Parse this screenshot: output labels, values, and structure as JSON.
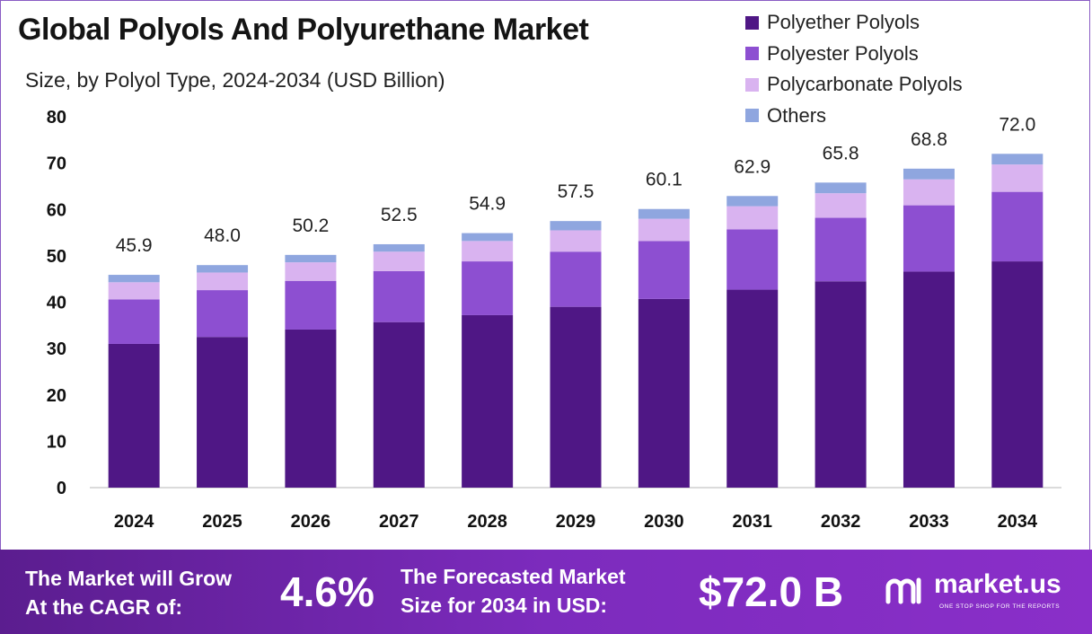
{
  "title": "Global Polyols And Polyurethane Market",
  "subtitle": "Size, by Polyol Type, 2024-2034 (USD Billion)",
  "chart_data": {
    "type": "bar",
    "stacked": true,
    "title": "Global Polyols And Polyurethane Market",
    "subtitle": "Size, by Polyol Type, 2024-2034 (USD Billion)",
    "xlabel": "",
    "ylabel": "",
    "ylim": [
      0,
      80
    ],
    "yticks": [
      0,
      10,
      20,
      30,
      40,
      50,
      60,
      70,
      80
    ],
    "categories": [
      "2024",
      "2025",
      "2026",
      "2027",
      "2028",
      "2029",
      "2030",
      "2031",
      "2032",
      "2033",
      "2034"
    ],
    "series": [
      {
        "name": "Polyether Polyols",
        "color": "#4f1785",
        "values": [
          31.0,
          32.5,
          34.1,
          35.7,
          37.2,
          39.0,
          40.7,
          42.7,
          44.5,
          46.6,
          48.8
        ]
      },
      {
        "name": "Polyester Polyols",
        "color": "#8d4fd1",
        "values": [
          9.6,
          10.1,
          10.5,
          11.0,
          11.6,
          11.9,
          12.5,
          13.0,
          13.7,
          14.3,
          15.0
        ]
      },
      {
        "name": "Polycarbonate Polyols",
        "color": "#d9b3f0",
        "values": [
          3.7,
          3.8,
          4.0,
          4.2,
          4.4,
          4.6,
          4.8,
          5.0,
          5.3,
          5.6,
          5.9
        ]
      },
      {
        "name": "Others",
        "color": "#8fa6df",
        "values": [
          1.6,
          1.6,
          1.6,
          1.6,
          1.7,
          2.0,
          2.1,
          2.2,
          2.3,
          2.3,
          2.3
        ]
      }
    ],
    "totals": [
      "45.9",
      "48.0",
      "50.2",
      "52.5",
      "54.9",
      "57.5",
      "60.1",
      "62.9",
      "65.8",
      "68.8",
      "72.0"
    ],
    "legend_position": "top-right",
    "grid": false
  },
  "footer": {
    "cagr_label_line1": "The Market will Grow",
    "cagr_label_line2": "At the CAGR of:",
    "cagr_value": "4.6%",
    "forecast_label_line1": "The Forecasted Market",
    "forecast_label_line2": "Size for 2034 in USD:",
    "forecast_value": "$72.0 B",
    "logo_text": "market.us",
    "logo_tagline": "ONE STOP SHOP FOR THE REPORTS",
    "logo_icon": "market-us-logo-icon"
  }
}
